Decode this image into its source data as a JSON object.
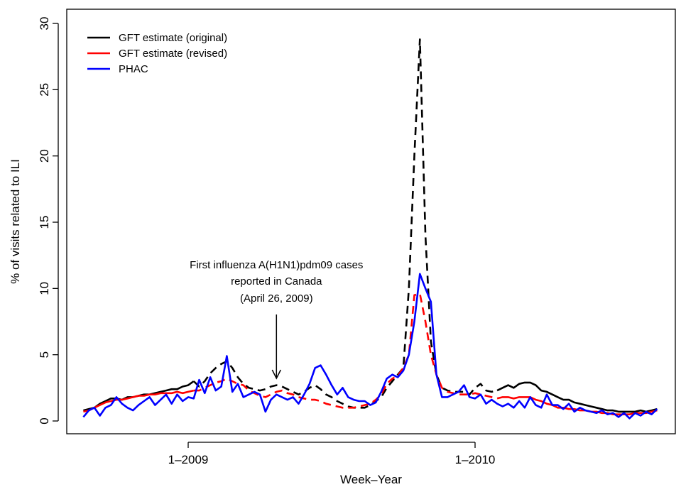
{
  "chart_data": {
    "type": "line",
    "title": "",
    "xlabel": "Week–Year",
    "ylabel": "% of visits related to ILI",
    "ylim": [
      0,
      30
    ],
    "yticks": [
      0,
      5,
      10,
      15,
      20,
      25,
      30
    ],
    "xticks": [
      {
        "week": 0,
        "label": "1–2009"
      },
      {
        "week": 52,
        "label": "1–2010"
      }
    ],
    "xlim": [
      -20,
      87
    ],
    "grid": false,
    "legend_position": "top-left",
    "annotation": {
      "lines": [
        "First influenza A(H1N1)pdm09 cases",
        "reported in Canada",
        "(April 26, 2009)"
      ],
      "week": 16,
      "arrow_to_y": 3.2
    },
    "series": [
      {
        "name": "GFT estimate (original)",
        "color": "#000000",
        "x": [
          -19,
          -18,
          -17,
          -16,
          -15,
          -14,
          -13,
          -12,
          -11,
          -10,
          -9,
          -8,
          -7,
          -6,
          -5,
          -4,
          -3,
          -2,
          -1,
          0,
          1,
          2,
          3,
          4,
          5,
          6,
          7,
          8,
          9,
          10,
          11,
          12,
          13,
          14,
          15,
          16,
          17,
          18,
          19,
          20,
          21,
          22,
          23,
          24,
          25,
          26,
          27,
          28,
          29,
          30,
          31,
          32,
          33,
          34,
          35,
          36,
          37,
          38,
          39,
          40,
          41,
          42,
          43,
          44,
          45,
          46,
          47,
          48,
          49,
          50,
          51,
          52,
          53,
          54,
          55,
          56,
          57,
          58,
          59,
          60,
          61,
          62,
          63,
          64,
          65,
          66,
          67,
          68,
          69,
          70,
          71,
          72,
          73,
          74,
          75,
          76,
          77,
          78,
          79,
          80,
          81,
          82,
          83,
          84,
          85
        ],
        "values": [
          0.8,
          0.9,
          1.0,
          1.3,
          1.5,
          1.7,
          1.7,
          1.6,
          1.8,
          1.8,
          1.9,
          2.0,
          2.0,
          2.1,
          2.2,
          2.3,
          2.4,
          2.4,
          2.6,
          2.7,
          3.0,
          2.6,
          3.0,
          3.6,
          4.0,
          4.3,
          4.5,
          4.0,
          3.3,
          2.8,
          2.5,
          2.4,
          2.3,
          2.4,
          2.6,
          2.7,
          2.6,
          2.4,
          2.2,
          2.0,
          2.2,
          2.5,
          2.7,
          2.4,
          2.0,
          1.8,
          1.5,
          1.3,
          1.1,
          1.0,
          1.0,
          1.0,
          1.2,
          1.5,
          1.8,
          2.5,
          3.0,
          3.5,
          4.0,
          10.0,
          20.0,
          28.8,
          14.0,
          6.0,
          3.5,
          2.5,
          2.3,
          2.2,
          2.2,
          2.2,
          2.0,
          2.5,
          2.8,
          2.3,
          2.2,
          2.3,
          2.5,
          2.7,
          2.5,
          2.8,
          2.9,
          2.9,
          2.7,
          2.3,
          2.2,
          2.0,
          1.8,
          1.6,
          1.6,
          1.4,
          1.3,
          1.2,
          1.1,
          1.0,
          0.9,
          0.8,
          0.8,
          0.7,
          0.7,
          0.7,
          0.7,
          0.8,
          0.7,
          0.8,
          0.9
        ],
        "dashed_ranges": [
          [
            1,
            56
          ]
        ]
      },
      {
        "name": "GFT estimate (revised)",
        "color": "#ff0000",
        "x": [
          -19,
          -18,
          -17,
          -16,
          -15,
          -14,
          -13,
          -12,
          -11,
          -10,
          -9,
          -8,
          -7,
          -6,
          -5,
          -4,
          -3,
          -2,
          -1,
          0,
          1,
          2,
          3,
          4,
          5,
          6,
          7,
          8,
          9,
          10,
          11,
          12,
          13,
          14,
          15,
          16,
          17,
          18,
          19,
          20,
          21,
          22,
          23,
          24,
          25,
          26,
          27,
          28,
          29,
          30,
          31,
          32,
          33,
          34,
          35,
          36,
          37,
          38,
          39,
          40,
          41,
          42,
          43,
          44,
          45,
          46,
          47,
          48,
          49,
          50,
          51,
          52,
          53,
          54,
          55,
          56,
          57,
          58,
          59,
          60,
          61,
          62,
          63,
          64,
          65,
          66,
          67,
          68,
          69,
          70,
          71,
          72,
          73,
          74,
          75,
          76,
          77,
          78,
          79,
          80,
          81,
          82,
          83,
          84,
          85
        ],
        "values": [
          0.7,
          0.8,
          1.0,
          1.2,
          1.4,
          1.5,
          1.6,
          1.6,
          1.7,
          1.8,
          1.9,
          1.9,
          2.0,
          2.0,
          2.1,
          2.1,
          2.1,
          2.2,
          2.1,
          2.2,
          2.3,
          2.3,
          2.5,
          2.7,
          2.9,
          3.0,
          3.2,
          3.0,
          2.8,
          2.7,
          2.3,
          2.1,
          1.9,
          1.8,
          2.0,
          2.2,
          2.3,
          2.1,
          2.0,
          1.8,
          1.7,
          1.6,
          1.6,
          1.5,
          1.3,
          1.2,
          1.1,
          1.0,
          1.0,
          1.0,
          1.1,
          1.2,
          1.3,
          1.6,
          2.0,
          2.8,
          3.2,
          3.4,
          4.0,
          5.0,
          9.5,
          9.6,
          7.5,
          5.0,
          3.5,
          2.5,
          2.2,
          2.1,
          2.0,
          2.0,
          2.0,
          2.1,
          2.0,
          1.9,
          1.8,
          1.7,
          1.8,
          1.8,
          1.7,
          1.8,
          1.8,
          1.8,
          1.6,
          1.5,
          1.3,
          1.2,
          1.0,
          1.0,
          0.9,
          0.9,
          0.8,
          0.8,
          0.7,
          0.7,
          0.6,
          0.6,
          0.5,
          0.5,
          0.5,
          0.5,
          0.6,
          0.6,
          0.6,
          0.7,
          0.8
        ],
        "dashed_ranges": [
          [
            1,
            56
          ]
        ]
      },
      {
        "name": "PHAC",
        "color": "#0000ff",
        "x": [
          -19,
          -18,
          -17,
          -16,
          -15,
          -14,
          -13,
          -12,
          -11,
          -10,
          -9,
          -8,
          -7,
          -6,
          -5,
          -4,
          -3,
          -2,
          -1,
          0,
          1,
          2,
          3,
          4,
          5,
          6,
          7,
          8,
          9,
          10,
          11,
          12,
          13,
          14,
          15,
          16,
          17,
          18,
          19,
          20,
          21,
          22,
          23,
          24,
          25,
          26,
          27,
          28,
          29,
          30,
          31,
          32,
          33,
          34,
          35,
          36,
          37,
          38,
          39,
          40,
          41,
          42,
          43,
          44,
          45,
          46,
          47,
          48,
          49,
          50,
          51,
          52,
          53,
          54,
          55,
          56,
          57,
          58,
          59,
          60,
          61,
          62,
          63,
          64,
          65,
          66,
          67,
          68,
          69,
          70,
          71,
          72,
          73,
          74,
          75,
          76,
          77,
          78,
          79,
          80,
          81,
          82,
          83,
          84,
          85
        ],
        "values": [
          0.3,
          0.8,
          1.0,
          0.4,
          1.0,
          1.2,
          1.8,
          1.3,
          1.0,
          0.8,
          1.2,
          1.5,
          1.8,
          1.2,
          1.6,
          2.0,
          1.3,
          2.0,
          1.5,
          1.8,
          1.7,
          3.1,
          2.1,
          3.3,
          2.3,
          2.6,
          4.9,
          2.2,
          2.8,
          1.8,
          2.0,
          2.2,
          2.0,
          0.7,
          1.6,
          2.0,
          1.8,
          1.6,
          1.8,
          1.3,
          2.0,
          2.8,
          4.0,
          4.2,
          3.5,
          2.7,
          2.0,
          2.5,
          1.8,
          1.6,
          1.5,
          1.5,
          1.2,
          1.4,
          2.2,
          3.2,
          3.5,
          3.3,
          3.8,
          5.0,
          7.5,
          11.1,
          10.0,
          9.0,
          3.5,
          1.8,
          1.8,
          2.0,
          2.2,
          2.7,
          1.8,
          1.7,
          2.0,
          1.3,
          1.6,
          1.3,
          1.1,
          1.3,
          1.0,
          1.5,
          1.0,
          1.8,
          1.2,
          1.0,
          2.0,
          1.2,
          1.2,
          0.9,
          1.3,
          0.7,
          1.0,
          0.8,
          0.7,
          0.6,
          0.8,
          0.5,
          0.6,
          0.3,
          0.6,
          0.2,
          0.6,
          0.4,
          0.7,
          0.5,
          0.9
        ],
        "dashed_ranges": []
      }
    ]
  }
}
